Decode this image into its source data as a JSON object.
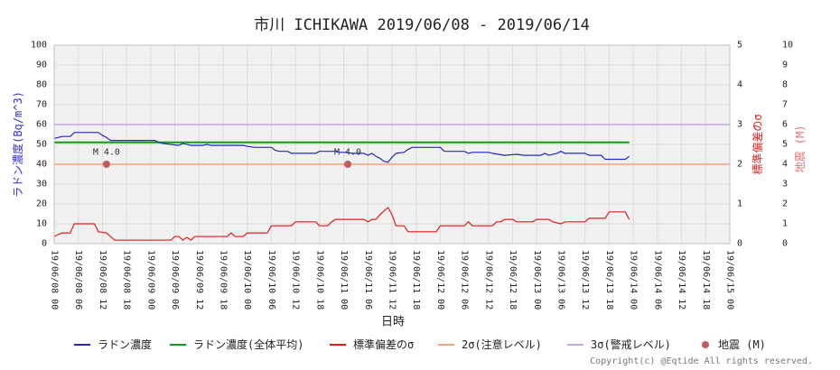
{
  "copyright": "Copyright(c) @Eqtide All rights reserved.",
  "chart_data": {
    "type": "line",
    "title": "市川 ICHIKAWA 2019/06/08 - 2019/06/14",
    "xlabel": "日時",
    "ylabel": "ラドン濃度(Bq/m^3)",
    "y2label": "標準偏差のσ",
    "y3label": "地震 (M)",
    "axis_colors": {
      "y": "#2f2fd0",
      "y2": "#e32020",
      "y3": "#e87070"
    },
    "xlim": [
      "2019-06-08 00:00",
      "2019-06-15 00:00"
    ],
    "ylim": [
      0,
      100
    ],
    "y2lim": [
      0,
      5
    ],
    "y3lim": [
      0,
      10
    ],
    "grid": true,
    "legend_position": "bottom",
    "x_ticks": [
      "19/06/08 00",
      "19/06/08 06",
      "19/06/08 12",
      "19/06/08 18",
      "19/06/09 00",
      "19/06/09 06",
      "19/06/09 12",
      "19/06/09 18",
      "19/06/10 00",
      "19/06/10 06",
      "19/06/10 12",
      "19/06/10 18",
      "19/06/11 00",
      "19/06/11 06",
      "19/06/11 12",
      "19/06/11 18",
      "19/06/12 00",
      "19/06/12 06",
      "19/06/12 12",
      "19/06/12 18",
      "19/06/13 00",
      "19/06/13 06",
      "19/06/13 12",
      "19/06/13 18",
      "19/06/14 00",
      "19/06/14 06",
      "19/06/14 12",
      "19/06/14 18",
      "19/06/15 00"
    ],
    "y_ticks": [
      0,
      10,
      20,
      30,
      40,
      50,
      60,
      70,
      80,
      90,
      100
    ],
    "y2_ticks": [
      0,
      1,
      2,
      3,
      4,
      5
    ],
    "y3_ticks": [
      0,
      1,
      2,
      3,
      4,
      5,
      6,
      7,
      8,
      9,
      10
    ],
    "series": [
      {
        "name": "ラドン濃度",
        "axis": "y",
        "color": "#2626c9",
        "points": [
          [
            "2019-06-08 00:00",
            53
          ],
          [
            "2019-06-08 01:00",
            53.5
          ],
          [
            "2019-06-08 02:00",
            54
          ],
          [
            "2019-06-08 04:00",
            54
          ],
          [
            "2019-06-08 05:00",
            56
          ],
          [
            "2019-06-08 11:00",
            56
          ],
          [
            "2019-06-08 12:00",
            54.5
          ],
          [
            "2019-06-08 13:00",
            53.5
          ],
          [
            "2019-06-08 14:00",
            52
          ],
          [
            "2019-06-09 01:00",
            52
          ],
          [
            "2019-06-09 02:00",
            51
          ],
          [
            "2019-06-09 03:00",
            50.5
          ],
          [
            "2019-06-09 05:00",
            50
          ],
          [
            "2019-06-09 07:00",
            49.5
          ],
          [
            "2019-06-09 08:00",
            50.5
          ],
          [
            "2019-06-09 10:00",
            49.5
          ],
          [
            "2019-06-09 13:00",
            49.5
          ],
          [
            "2019-06-09 14:00",
            50
          ],
          [
            "2019-06-09 15:00",
            49.5
          ],
          [
            "2019-06-09 23:00",
            49.5
          ],
          [
            "2019-06-10 00:00",
            49
          ],
          [
            "2019-06-10 02:00",
            48.5
          ],
          [
            "2019-06-10 06:00",
            48.5
          ],
          [
            "2019-06-10 07:00",
            47
          ],
          [
            "2019-06-10 08:00",
            46.5
          ],
          [
            "2019-06-10 10:00",
            46.5
          ],
          [
            "2019-06-10 11:00",
            45.5
          ],
          [
            "2019-06-10 17:00",
            45.5
          ],
          [
            "2019-06-10 18:00",
            46.5
          ],
          [
            "2019-06-10 22:00",
            46.5
          ],
          [
            "2019-06-10 23:00",
            46
          ],
          [
            "2019-06-11 01:00",
            46
          ],
          [
            "2019-06-11 02:00",
            45.5
          ],
          [
            "2019-06-11 05:00",
            45.5
          ],
          [
            "2019-06-11 06:00",
            44.5
          ],
          [
            "2019-06-11 07:00",
            45.5
          ],
          [
            "2019-06-11 08:00",
            44
          ],
          [
            "2019-06-11 09:00",
            43
          ],
          [
            "2019-06-11 10:00",
            41.5
          ],
          [
            "2019-06-11 11:00",
            41
          ],
          [
            "2019-06-11 12:00",
            43.5
          ],
          [
            "2019-06-11 13:00",
            45.5
          ],
          [
            "2019-06-11 15:00",
            46
          ],
          [
            "2019-06-11 16:00",
            47.5
          ],
          [
            "2019-06-11 17:00",
            48.5
          ],
          [
            "2019-06-12 00:00",
            48.5
          ],
          [
            "2019-06-12 01:00",
            46.5
          ],
          [
            "2019-06-12 06:00",
            46.5
          ],
          [
            "2019-06-12 07:00",
            45.5
          ],
          [
            "2019-06-12 08:00",
            46
          ],
          [
            "2019-06-12 12:00",
            46
          ],
          [
            "2019-06-12 13:00",
            45.5
          ],
          [
            "2019-06-12 16:00",
            44.5
          ],
          [
            "2019-06-12 19:00",
            45
          ],
          [
            "2019-06-12 21:00",
            44.5
          ],
          [
            "2019-06-13 01:00",
            44.5
          ],
          [
            "2019-06-13 02:00",
            45.5
          ],
          [
            "2019-06-13 03:00",
            44.5
          ],
          [
            "2019-06-13 05:00",
            45.5
          ],
          [
            "2019-06-13 06:00",
            46.5
          ],
          [
            "2019-06-13 07:00",
            45.5
          ],
          [
            "2019-06-13 12:00",
            45.5
          ],
          [
            "2019-06-13 13:00",
            44.5
          ],
          [
            "2019-06-13 16:00",
            44.5
          ],
          [
            "2019-06-13 17:00",
            42.5
          ],
          [
            "2019-06-13 22:00",
            42.5
          ],
          [
            "2019-06-13 23:00",
            44
          ]
        ]
      },
      {
        "name": "ラドン濃度(全体平均)",
        "axis": "y",
        "color": "#159a15",
        "points": [
          [
            "2019-06-08 00:00",
            51
          ],
          [
            "2019-06-13 23:00",
            51
          ]
        ]
      },
      {
        "name": "標準偏差のσ",
        "axis": "y2",
        "color": "#e41b1b",
        "points": [
          [
            "2019-06-08 00:00",
            0.18
          ],
          [
            "2019-06-08 01:00",
            0.23
          ],
          [
            "2019-06-08 02:00",
            0.27
          ],
          [
            "2019-06-08 04:00",
            0.27
          ],
          [
            "2019-06-08 05:00",
            0.5
          ],
          [
            "2019-06-08 10:00",
            0.5
          ],
          [
            "2019-06-08 11:00",
            0.3
          ],
          [
            "2019-06-08 13:00",
            0.27
          ],
          [
            "2019-06-08 14:00",
            0.18
          ],
          [
            "2019-06-08 15:00",
            0.09
          ],
          [
            "2019-06-09 05:00",
            0.09
          ],
          [
            "2019-06-09 06:00",
            0.18
          ],
          [
            "2019-06-09 07:00",
            0.18
          ],
          [
            "2019-06-09 08:00",
            0.09
          ],
          [
            "2019-06-09 09:00",
            0.16
          ],
          [
            "2019-06-09 10:00",
            0.09
          ],
          [
            "2019-06-09 11:00",
            0.18
          ],
          [
            "2019-06-09 19:00",
            0.18
          ],
          [
            "2019-06-09 20:00",
            0.27
          ],
          [
            "2019-06-09 21:00",
            0.18
          ],
          [
            "2019-06-09 23:00",
            0.18
          ],
          [
            "2019-06-10 00:00",
            0.27
          ],
          [
            "2019-06-10 05:00",
            0.27
          ],
          [
            "2019-06-10 06:00",
            0.45
          ],
          [
            "2019-06-10 11:00",
            0.45
          ],
          [
            "2019-06-10 12:00",
            0.55
          ],
          [
            "2019-06-10 17:00",
            0.55
          ],
          [
            "2019-06-10 18:00",
            0.45
          ],
          [
            "2019-06-10 20:00",
            0.45
          ],
          [
            "2019-06-10 21:00",
            0.55
          ],
          [
            "2019-06-10 22:00",
            0.61
          ],
          [
            "2019-06-11 05:00",
            0.61
          ],
          [
            "2019-06-11 06:00",
            0.55
          ],
          [
            "2019-06-11 07:00",
            0.61
          ],
          [
            "2019-06-11 08:00",
            0.61
          ],
          [
            "2019-06-11 09:00",
            0.73
          ],
          [
            "2019-06-11 11:00",
            0.91
          ],
          [
            "2019-06-11 12:00",
            0.73
          ],
          [
            "2019-06-11 13:00",
            0.45
          ],
          [
            "2019-06-11 15:00",
            0.45
          ],
          [
            "2019-06-11 16:00",
            0.3
          ],
          [
            "2019-06-11 23:00",
            0.3
          ],
          [
            "2019-06-12 00:00",
            0.45
          ],
          [
            "2019-06-12 06:00",
            0.45
          ],
          [
            "2019-06-12 07:00",
            0.55
          ],
          [
            "2019-06-12 08:00",
            0.45
          ],
          [
            "2019-06-12 13:00",
            0.45
          ],
          [
            "2019-06-12 14:00",
            0.55
          ],
          [
            "2019-06-12 15:00",
            0.55
          ],
          [
            "2019-06-12 16:00",
            0.61
          ],
          [
            "2019-06-12 18:00",
            0.61
          ],
          [
            "2019-06-12 19:00",
            0.55
          ],
          [
            "2019-06-12 23:00",
            0.55
          ],
          [
            "2019-06-13 00:00",
            0.61
          ],
          [
            "2019-06-13 03:00",
            0.61
          ],
          [
            "2019-06-13 04:00",
            0.55
          ],
          [
            "2019-06-13 06:00",
            0.5
          ],
          [
            "2019-06-13 07:00",
            0.55
          ],
          [
            "2019-06-13 12:00",
            0.55
          ],
          [
            "2019-06-13 13:00",
            0.64
          ],
          [
            "2019-06-13 17:00",
            0.64
          ],
          [
            "2019-06-13 18:00",
            0.8
          ],
          [
            "2019-06-13 22:00",
            0.8
          ],
          [
            "2019-06-13 23:00",
            0.61
          ]
        ]
      }
    ],
    "reference_lines": [
      {
        "name": "2σ(注意レベル)",
        "axis": "y2",
        "value": 2,
        "color": "#f4a27a"
      },
      {
        "name": "3σ(警戒レベル)",
        "axis": "y2",
        "value": 3,
        "color": "#c7a3f0"
      }
    ],
    "earthquakes": {
      "name": "地震 (M)",
      "axis": "y3",
      "color": "#c25c5c",
      "events": [
        {
          "time": "2019-06-08 13:00",
          "magnitude": 4.0,
          "label": "M 4.0"
        },
        {
          "time": "2019-06-11 01:00",
          "magnitude": 4.0,
          "label": "M 4.0"
        }
      ]
    }
  }
}
